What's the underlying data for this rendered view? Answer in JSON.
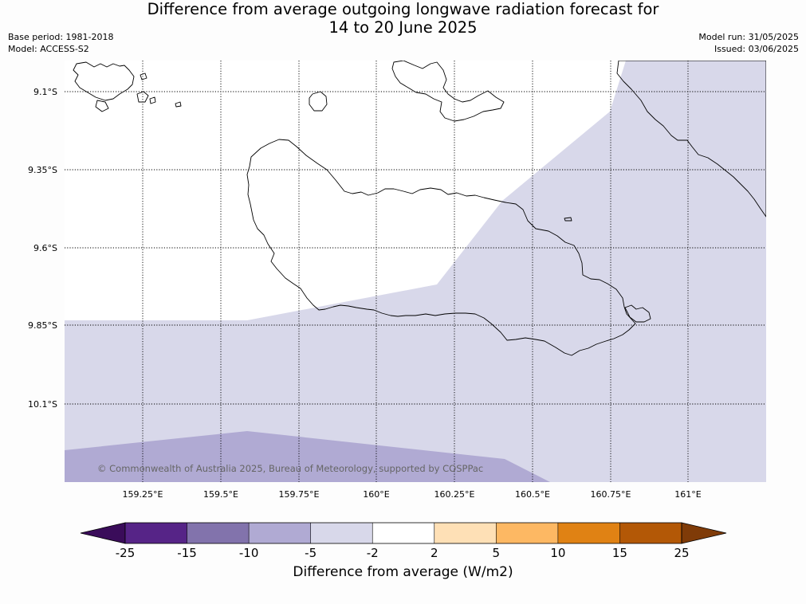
{
  "title": {
    "line1": "Difference from average outgoing longwave radiation forecast for",
    "line2": "14 to 20 June 2025"
  },
  "meta": {
    "base_period": "Base period: 1981-2018",
    "model": "Model: ACCESS-S2",
    "model_run": "Model run: 31/05/2025",
    "issued": "Issued: 03/06/2025"
  },
  "map": {
    "latitude_labels": [
      "9.1°S",
      "9.35°S",
      "9.6°S",
      "9.85°S",
      "10.1°S"
    ],
    "longitude_labels": [
      "159.25°E",
      "159.5°E",
      "159.75°E",
      "160°E",
      "160.25°E",
      "160.5°E",
      "160.75°E",
      "161°E"
    ],
    "copyright": "© Commonwealth of Australia 2025, Bureau of Meteorology, supported by COSPPac",
    "colors": {
      "ocean_neutral": "#ffffff",
      "band_minus5_minus2": "#d8d8ea",
      "band_minus10_minus5": "#b0aad3",
      "coast": "#000000"
    }
  },
  "colorbar": {
    "ticks": [
      "-25",
      "-15",
      "-10",
      "-5",
      "-2",
      "2",
      "5",
      "10",
      "15",
      "25"
    ],
    "colors": [
      "#3a0c5a",
      "#562487",
      "#8273ac",
      "#b0aad3",
      "#d8d8ea",
      "#ffffff",
      "#fee0b6",
      "#fdb863",
      "#e08214",
      "#b35806",
      "#7f3b08"
    ],
    "label": "Difference from average (W/m2)"
  }
}
